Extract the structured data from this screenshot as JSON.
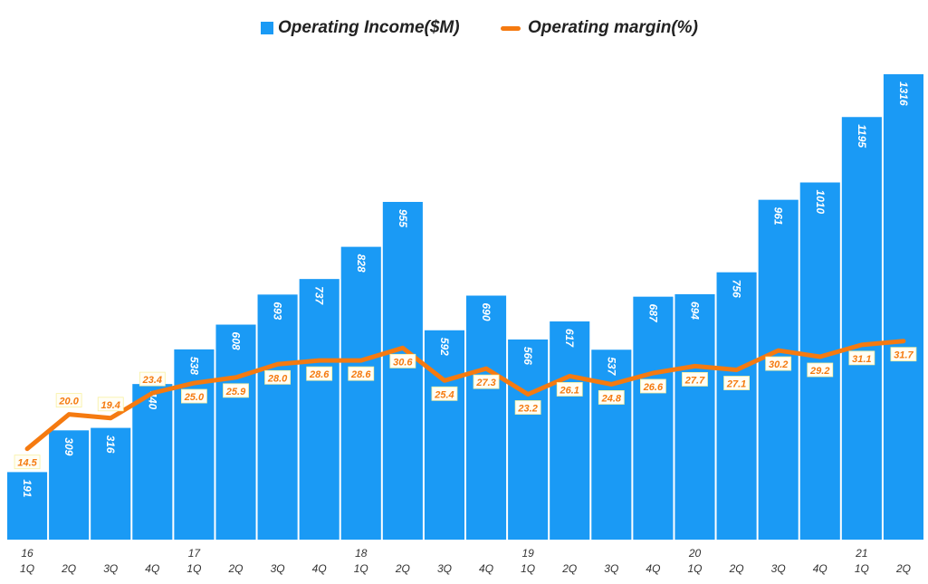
{
  "chart_data": {
    "type": "bar+line",
    "legend_position": "top",
    "grid": false,
    "colors": {
      "bars": "#1a9af5",
      "line": "#f57a10",
      "line_label": "#f57a10",
      "bar_label": "#ffffff"
    },
    "categories": [
      "1Q",
      "2Q",
      "3Q",
      "4Q",
      "1Q",
      "2Q",
      "3Q",
      "4Q",
      "1Q",
      "2Q",
      "3Q",
      "4Q",
      "1Q",
      "2Q",
      "3Q",
      "4Q",
      "1Q",
      "2Q",
      "3Q",
      "4Q",
      "1Q",
      "2Q"
    ],
    "year_labels": [
      "16",
      "",
      "",
      "",
      "17",
      "",
      "",
      "",
      "18",
      "",
      "",
      "",
      "19",
      "",
      "",
      "",
      "20",
      "",
      "",
      "",
      "21",
      ""
    ],
    "series": [
      {
        "name": "Operating Income($M)",
        "type": "bar",
        "axis": "left",
        "values": [
          191,
          309,
          316,
          440,
          538,
          608,
          693,
          737,
          828,
          955,
          592,
          690,
          566,
          617,
          537,
          687,
          694,
          756,
          961,
          1010,
          1195,
          1316
        ]
      },
      {
        "name": "Operating margin(%)",
        "type": "line",
        "axis": "right",
        "values": [
          14.5,
          20.0,
          19.4,
          23.4,
          25.0,
          25.9,
          28.0,
          28.6,
          28.6,
          30.6,
          25.4,
          27.3,
          23.2,
          26.1,
          24.8,
          26.6,
          27.7,
          27.1,
          30.2,
          29.2,
          31.1,
          31.7
        ]
      }
    ],
    "ylim": [
      0,
      1316
    ],
    "y2lim": [
      0,
      74.3
    ]
  }
}
